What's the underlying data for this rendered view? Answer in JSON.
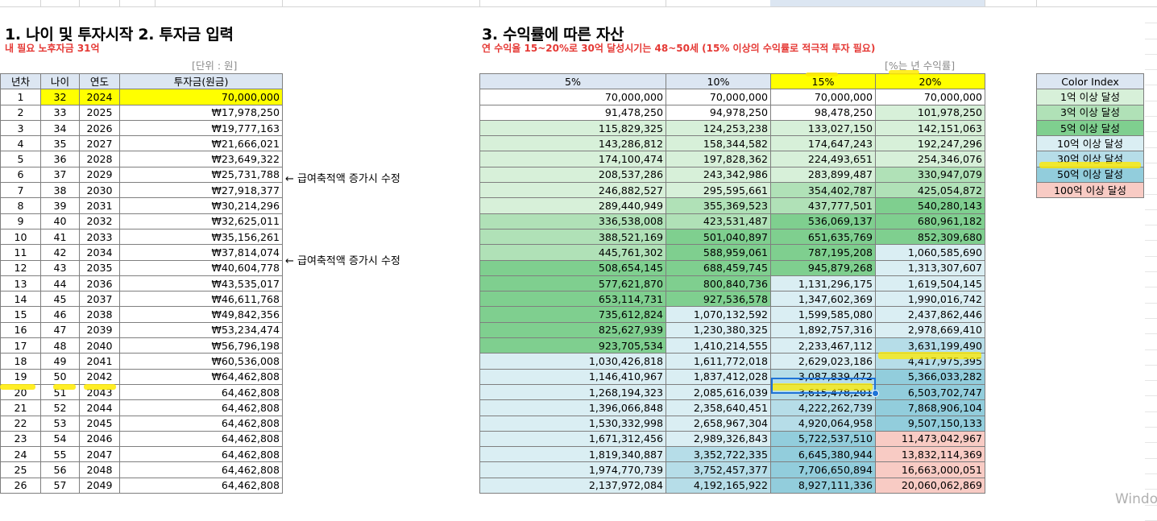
{
  "left_table": {
    "title": "1. 나이 및 투자시작 2. 투자금 입력",
    "subtitle": "내 필요 노후자금 31억",
    "unit_label": "[단위 : 원]",
    "headers": [
      "년차",
      "나이",
      "연도",
      "투자금(원금)"
    ],
    "rows": [
      [
        "1",
        "32",
        "2024",
        "70,000,000"
      ],
      [
        "2",
        "33",
        "2025",
        "₩17,978,250"
      ],
      [
        "3",
        "34",
        "2026",
        "₩19,777,163"
      ],
      [
        "4",
        "35",
        "2027",
        "₩21,666,021"
      ],
      [
        "5",
        "36",
        "2028",
        "₩23,649,322"
      ],
      [
        "6",
        "37",
        "2029",
        "₩25,731,788"
      ],
      [
        "7",
        "38",
        "2030",
        "₩27,918,377"
      ],
      [
        "8",
        "39",
        "2031",
        "₩30,214,296"
      ],
      [
        "9",
        "40",
        "2032",
        "₩32,625,011"
      ],
      [
        "10",
        "41",
        "2033",
        "₩35,156,261"
      ],
      [
        "11",
        "42",
        "2034",
        "₩37,814,074"
      ],
      [
        "12",
        "43",
        "2035",
        "₩40,604,778"
      ],
      [
        "13",
        "44",
        "2036",
        "₩43,535,017"
      ],
      [
        "14",
        "45",
        "2037",
        "₩46,611,768"
      ],
      [
        "15",
        "46",
        "2038",
        "₩49,842,356"
      ],
      [
        "16",
        "47",
        "2039",
        "₩53,234,474"
      ],
      [
        "17",
        "48",
        "2040",
        "₩56,796,198"
      ],
      [
        "18",
        "49",
        "2041",
        "₩60,536,008"
      ],
      [
        "19",
        "50",
        "2042",
        "₩64,462,808"
      ],
      [
        "20",
        "51",
        "2043",
        "64,462,808"
      ],
      [
        "21",
        "52",
        "2044",
        "64,462,808"
      ],
      [
        "22",
        "53",
        "2045",
        "64,462,808"
      ],
      [
        "23",
        "54",
        "2046",
        "64,462,808"
      ],
      [
        "24",
        "55",
        "2047",
        "64,462,808"
      ],
      [
        "25",
        "56",
        "2048",
        "64,462,808"
      ],
      [
        "26",
        "57",
        "2049",
        "64,462,808"
      ]
    ]
  },
  "notes": {
    "row6": "← 급여축적액 증가시 수정",
    "row11": "← 급여축적액 증가시 수정"
  },
  "right_table": {
    "title": "3. 수익률에 따른 자산",
    "subtitle": "연 수익율 15~20%로 30억 달성시기는 48~50세 (15% 이상의 수익률로 적극적 투자 필요)",
    "unit_label": "[%는 년 수익률]",
    "headers": [
      "5%",
      "10%",
      "15%",
      "20%"
    ],
    "rows": [
      [
        "70,000,000",
        "70,000,000",
        "70,000,000",
        "70,000,000"
      ],
      [
        "91,478,250",
        "94,978,250",
        "98,478,250",
        "101,978,250"
      ],
      [
        "115,829,325",
        "124,253,238",
        "133,027,150",
        "142,151,063"
      ],
      [
        "143,286,812",
        "158,344,582",
        "174,647,243",
        "192,247,296"
      ],
      [
        "174,100,474",
        "197,828,362",
        "224,493,651",
        "254,346,076"
      ],
      [
        "208,537,286",
        "243,342,986",
        "283,899,487",
        "330,947,079"
      ],
      [
        "246,882,527",
        "295,595,661",
        "354,402,787",
        "425,054,872"
      ],
      [
        "289,440,949",
        "355,369,523",
        "437,777,501",
        "540,280,143"
      ],
      [
        "336,538,008",
        "423,531,487",
        "536,069,137",
        "680,961,182"
      ],
      [
        "388,521,169",
        "501,040,897",
        "651,635,769",
        "852,309,680"
      ],
      [
        "445,761,302",
        "588,959,061",
        "787,195,208",
        "1,060,585,690"
      ],
      [
        "508,654,145",
        "688,459,745",
        "945,879,268",
        "1,313,307,607"
      ],
      [
        "577,621,870",
        "800,840,736",
        "1,131,296,175",
        "1,619,504,145"
      ],
      [
        "653,114,731",
        "927,536,578",
        "1,347,602,369",
        "1,990,016,742"
      ],
      [
        "735,612,824",
        "1,070,132,592",
        "1,599,585,080",
        "2,437,862,446"
      ],
      [
        "825,627,939",
        "1,230,380,325",
        "1,892,757,316",
        "2,978,669,410"
      ],
      [
        "923,705,534",
        "1,410,214,555",
        "2,233,467,112",
        "3,631,199,490"
      ],
      [
        "1,030,426,818",
        "1,611,772,018",
        "2,629,023,186",
        "4,417,975,395"
      ],
      [
        "1,146,410,967",
        "1,837,412,028",
        "3,087,839,472",
        "5,366,033,282"
      ],
      [
        "1,268,194,323",
        "2,085,616,039",
        "3,615,478,201",
        "6,503,702,747"
      ],
      [
        "1,396,066,848",
        "2,358,640,451",
        "4,222,262,739",
        "7,868,906,104"
      ],
      [
        "1,530,332,998",
        "2,658,967,304",
        "4,920,064,958",
        "9,507,150,133"
      ],
      [
        "1,671,312,456",
        "2,989,326,843",
        "5,722,537,510",
        "11,473,042,967"
      ],
      [
        "1,819,340,887",
        "3,352,722,335",
        "6,645,380,944",
        "13,832,114,369"
      ],
      [
        "1,974,770,739",
        "3,752,457,377",
        "7,706,650,894",
        "16,663,000,051"
      ],
      [
        "2,137,972,084",
        "4,192,165,922",
        "8,927,111,336",
        "20,060,062,869"
      ]
    ]
  },
  "color_index": {
    "header": "Color Index",
    "items": [
      {
        "label": "1억 이상 달성",
        "color": "#d7f0d9"
      },
      {
        "label": "3억 이상 달성",
        "color": "#b0e1b7"
      },
      {
        "label": "5억 이상 달성",
        "color": "#7fcf8f"
      },
      {
        "label": "10억 이상 달성",
        "color": "#daeef3"
      },
      {
        "label": "30억 이상 달성",
        "color": "#b6dde8"
      },
      {
        "label": "50억 이상 달성",
        "color": "#92cddc"
      },
      {
        "label": "100억 이상 달성",
        "color": "#f8cbc4"
      }
    ]
  },
  "watermark": "Windo"
}
